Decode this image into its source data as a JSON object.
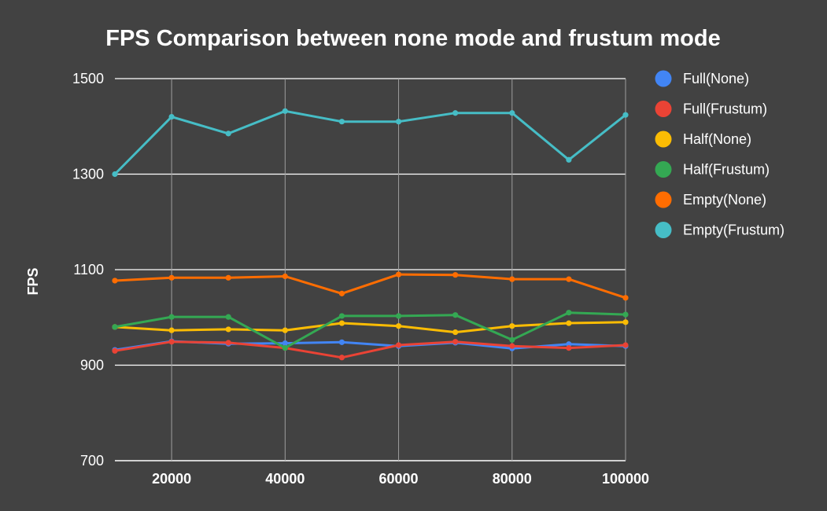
{
  "chart_data": {
    "type": "line",
    "title": "FPS Comparison between none mode and frustum mode",
    "xlabel": "",
    "ylabel": "FPS",
    "x": [
      10000,
      20000,
      30000,
      40000,
      50000,
      60000,
      70000,
      80000,
      90000,
      100000
    ],
    "x_ticks": [
      "20000",
      "40000",
      "60000",
      "80000",
      "100000"
    ],
    "x_tick_values": [
      20000,
      40000,
      60000,
      80000,
      100000
    ],
    "xlim": [
      10000,
      100000
    ],
    "y_ticks": [
      "1500",
      "1300",
      "1100",
      "900",
      "700"
    ],
    "y_tick_values": [
      1500,
      1300,
      1100,
      900,
      700
    ],
    "ylim": [
      700,
      1500
    ],
    "grid": true,
    "legend_position": "right",
    "series": [
      {
        "name": "Full(None)",
        "color": "#4285f4",
        "values": [
          932,
          950,
          945,
          946,
          948,
          940,
          947,
          935,
          944,
          940
        ]
      },
      {
        "name": "Full(Frustum)",
        "color": "#ea4335",
        "values": [
          930,
          949,
          947,
          936,
          916,
          942,
          949,
          940,
          936,
          942
        ]
      },
      {
        "name": "Half(None)",
        "color": "#fbbc04",
        "values": [
          980,
          973,
          975,
          973,
          988,
          982,
          969,
          982,
          988,
          990
        ]
      },
      {
        "name": "Half(Frustum)",
        "color": "#34a853",
        "values": [
          980,
          1001,
          1001,
          936,
          1003,
          1003,
          1005,
          953,
          1010,
          1006
        ]
      },
      {
        "name": "Empty(None)",
        "color": "#ff6d01",
        "values": [
          1077,
          1083,
          1083,
          1086,
          1050,
          1090,
          1089,
          1080,
          1080,
          1041
        ]
      },
      {
        "name": "Empty(Frustum)",
        "color": "#46bdc6",
        "values": [
          1300,
          1420,
          1385,
          1432,
          1410,
          1410,
          1428,
          1428,
          1330,
          1424
        ]
      }
    ]
  }
}
